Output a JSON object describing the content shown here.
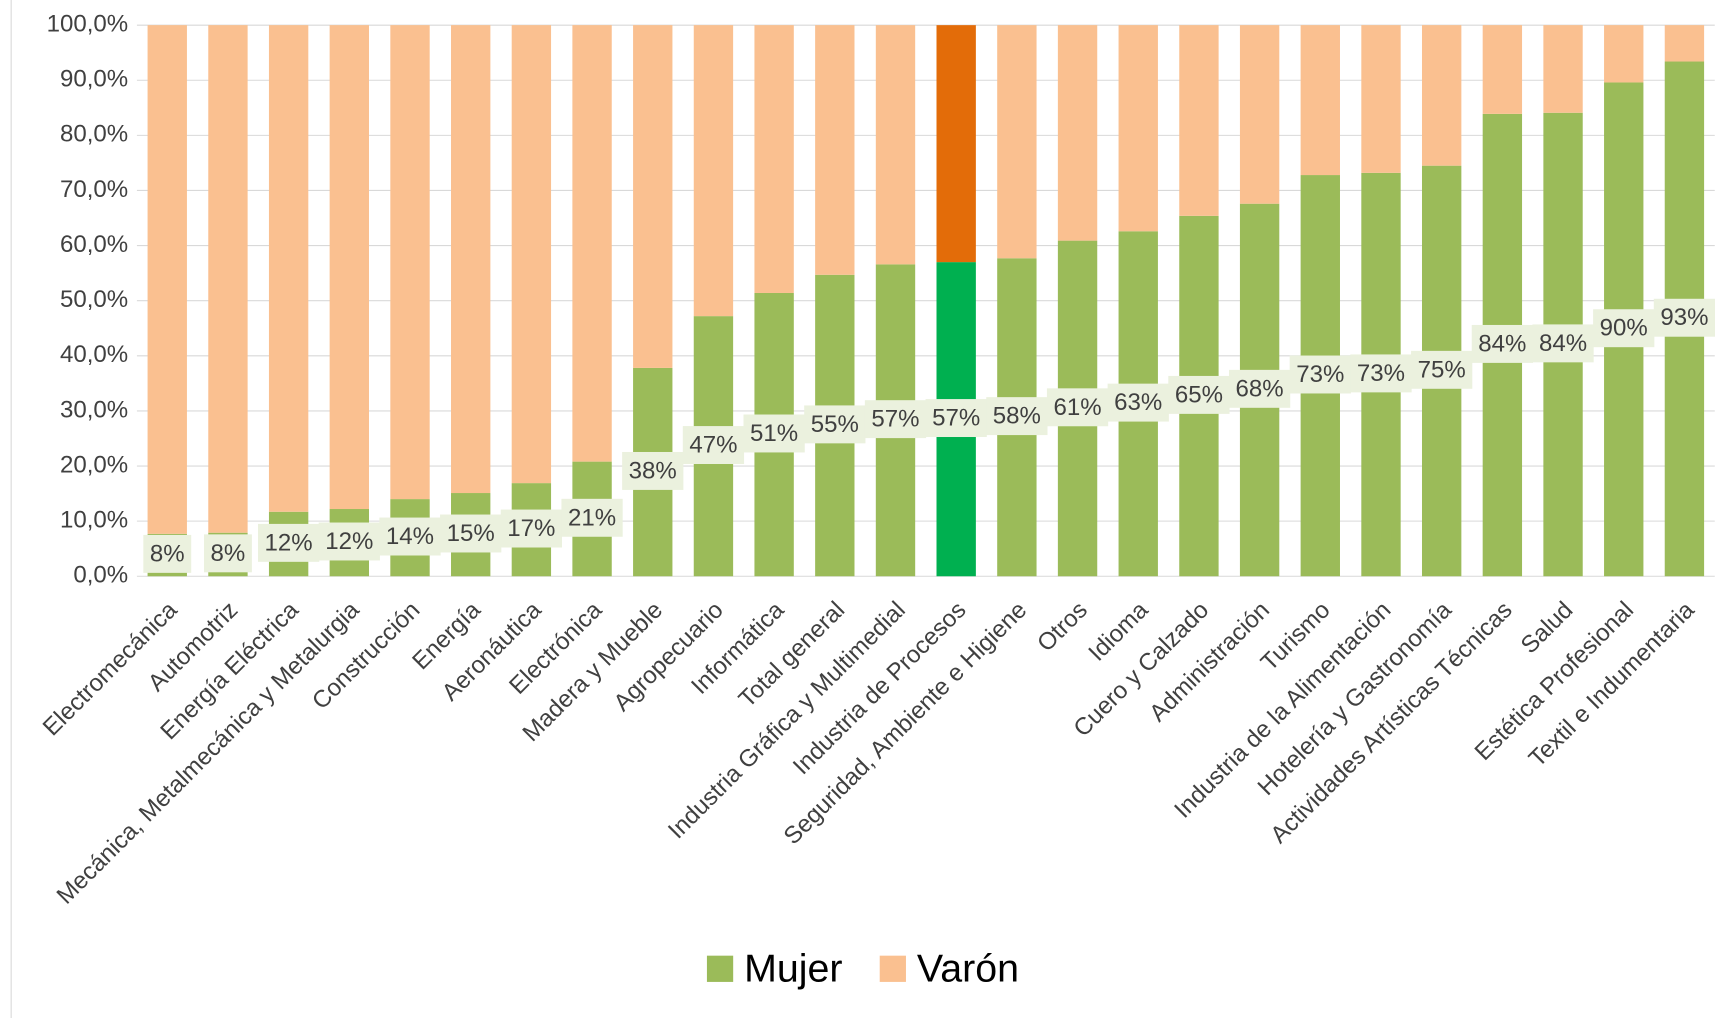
{
  "chart_data": {
    "type": "stacked_bar",
    "categories": [
      "Electromecánica",
      "Automotriz",
      "Energía Eléctrica",
      "Mecánica, Metalmecánica y Metalurgia",
      "Construcción",
      "Energía",
      "Aeronáutica",
      "Electrónica",
      "Madera y Mueble",
      "Agropecuario",
      "Informática",
      "Total general",
      "Industria Gráfica y Multimedial",
      "Industria de Procesos",
      "Seguridad, Ambiente e Higiene",
      "Otros",
      "Idioma",
      "Cuero y Calzado",
      "Administración",
      "Turismo",
      "Industria de la Alimentación",
      "Hotelería y Gastronomía",
      "Actividades Artísticas Técnicas",
      "Salud",
      "Estética Profesional",
      "Textil e Indumentaria"
    ],
    "series": [
      {
        "name": "Mujer",
        "color": "#9bbb59",
        "values": [
          7.7,
          7.9,
          11.7,
          12.2,
          14.0,
          15.1,
          16.9,
          20.8,
          37.8,
          47.2,
          51.4,
          54.7,
          56.6,
          57.0,
          57.7,
          60.9,
          62.6,
          65.4,
          67.6,
          72.8,
          73.2,
          74.5,
          83.9,
          84.1,
          89.6,
          93.4
        ],
        "value_labels": [
          "8%",
          "8%",
          "12%",
          "12%",
          "14%",
          "15%",
          "17%",
          "21%",
          "38%",
          "47%",
          "51%",
          "55%",
          "57%",
          "57%",
          "58%",
          "61%",
          "63%",
          "65%",
          "68%",
          "73%",
          "73%",
          "75%",
          "84%",
          "84%",
          "90%",
          "93%"
        ]
      },
      {
        "name": "Varón",
        "color": "#fac090",
        "values": [
          92.3,
          92.1,
          88.3,
          87.8,
          86.0,
          84.9,
          83.1,
          79.2,
          62.2,
          52.8,
          48.6,
          45.3,
          43.4,
          43.0,
          42.3,
          39.1,
          37.4,
          34.6,
          32.4,
          27.2,
          26.8,
          25.5,
          16.1,
          15.9,
          10.4,
          6.6
        ]
      }
    ],
    "highlight": {
      "category": "Industria de Procesos",
      "colors": [
        "#00b050",
        "#e36c09"
      ]
    },
    "ylim": [
      0,
      100
    ],
    "yticks": [
      {
        "value": 0,
        "label": "0,0%"
      },
      {
        "value": 10,
        "label": "10,0%"
      },
      {
        "value": 20,
        "label": "20,0%"
      },
      {
        "value": 30,
        "label": "30,0%"
      },
      {
        "value": 40,
        "label": "40,0%"
      },
      {
        "value": 50,
        "label": "50,0%"
      },
      {
        "value": 60,
        "label": "60,0%"
      },
      {
        "value": 70,
        "label": "70,0%"
      },
      {
        "value": 80,
        "label": "80,0%"
      },
      {
        "value": 90,
        "label": "90,0%"
      },
      {
        "value": 100,
        "label": "100,0%"
      }
    ],
    "grid": true,
    "legend": "bottom"
  }
}
